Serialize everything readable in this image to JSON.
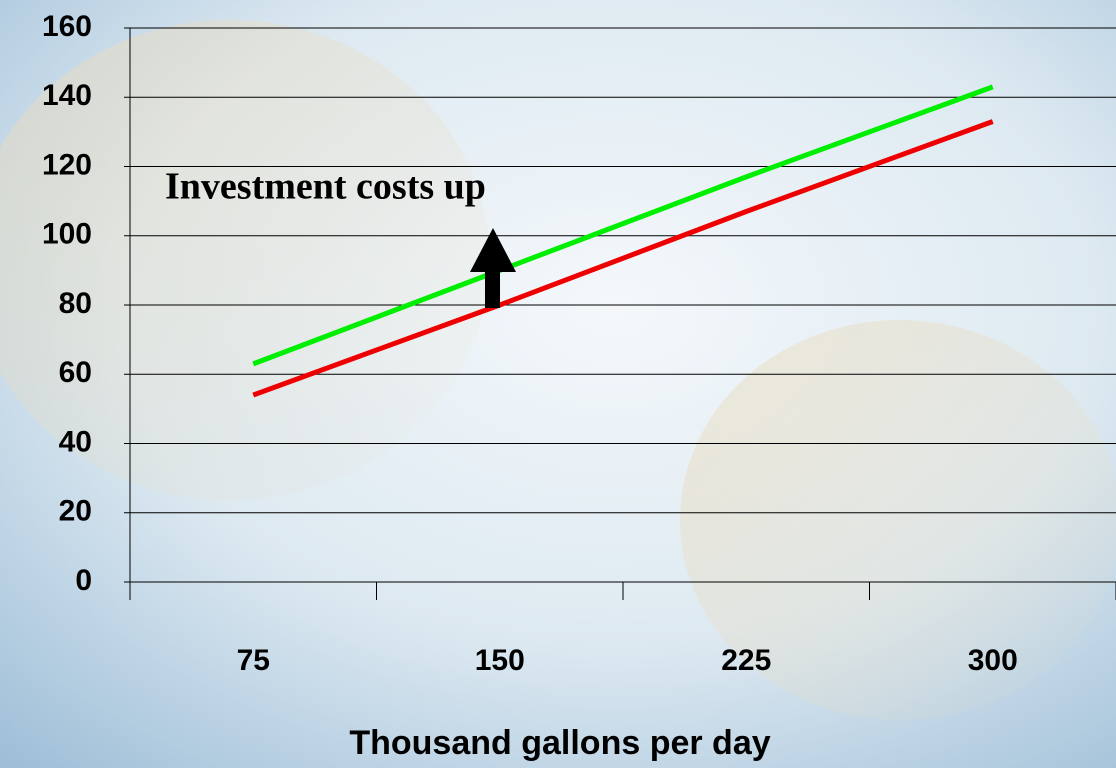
{
  "chart_data": {
    "type": "line",
    "categories": [
      "75",
      "150",
      "225",
      "300"
    ],
    "series": [
      {
        "color": "#00ee00",
        "values": [
          63,
          90,
          117,
          143
        ]
      },
      {
        "color": "#ee0000",
        "values": [
          54,
          80,
          107,
          133
        ]
      }
    ],
    "ylim": [
      0,
      160
    ],
    "yticks": [
      0,
      20,
      40,
      60,
      80,
      100,
      120,
      140,
      160
    ],
    "grid": true,
    "xlabel": "Thousand gallons per day",
    "annotation": "Investment costs up"
  }
}
